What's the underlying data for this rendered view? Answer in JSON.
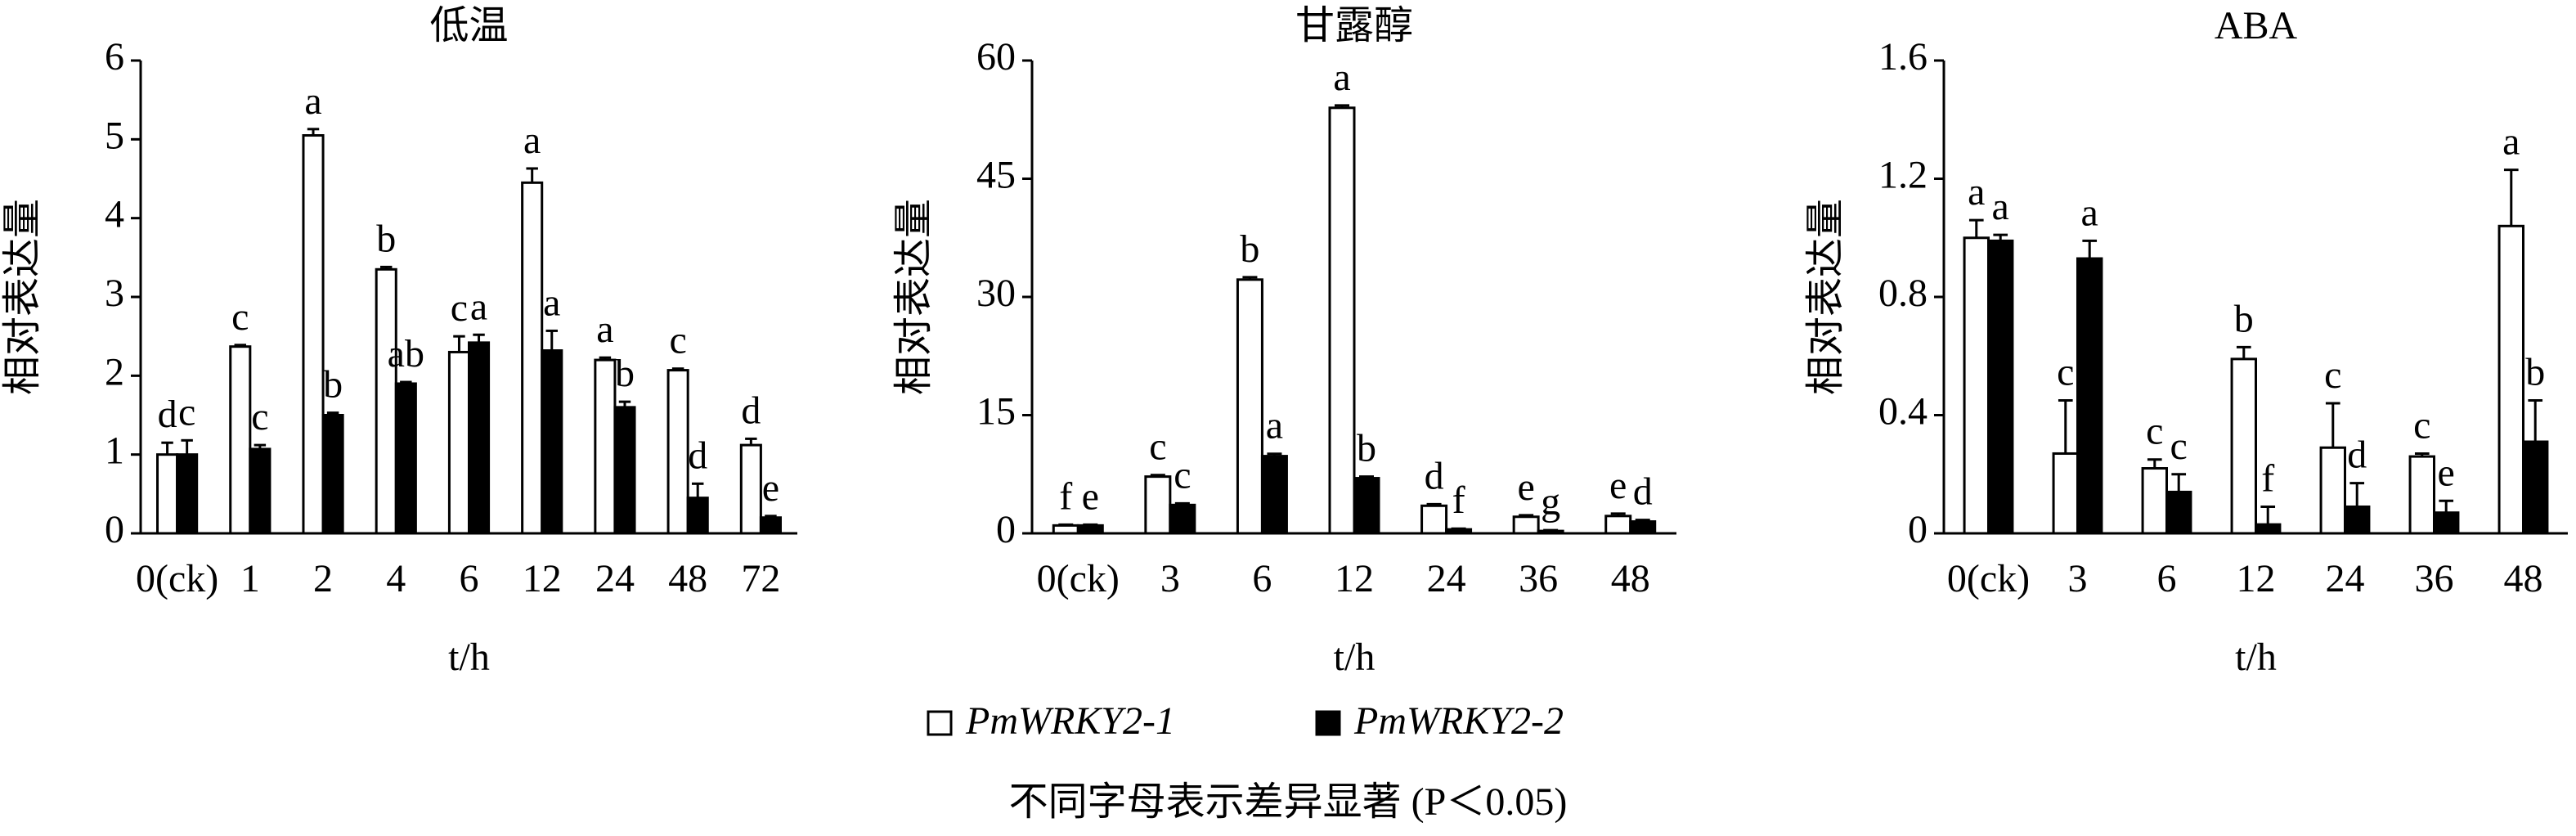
{
  "chart_data": [
    {
      "type": "bar",
      "title": "低温",
      "xlabel": "t/h",
      "ylabel": "相对表达量",
      "categories": [
        "0(ck)",
        "1",
        "2",
        "4",
        "6",
        "12",
        "24",
        "48",
        "72"
      ],
      "ylim": [
        0,
        6
      ],
      "yticks": [
        0,
        1,
        2,
        3,
        4,
        5,
        6
      ],
      "series": [
        {
          "name": "PmWRKY2-1",
          "color": "#ffffff",
          "values": [
            1.0,
            2.37,
            5.05,
            3.35,
            2.3,
            4.45,
            2.2,
            2.07,
            1.12
          ],
          "errors": [
            0.15,
            0.02,
            0.08,
            0.03,
            0.2,
            0.18,
            0.03,
            0.02,
            0.08
          ],
          "letters": [
            "d",
            "c",
            "a",
            "b",
            "c",
            "a",
            "a",
            "c",
            "d"
          ]
        },
        {
          "name": "PmWRKY2-2",
          "color": "#000000",
          "values": [
            1.0,
            1.07,
            1.5,
            1.9,
            2.42,
            2.32,
            1.6,
            0.45,
            0.2
          ],
          "errors": [
            0.18,
            0.05,
            0.03,
            0.02,
            0.1,
            0.25,
            0.07,
            0.18,
            0.02
          ],
          "letters": [
            "c",
            "c",
            "b",
            "ab",
            "a",
            "a",
            "b",
            "d",
            "e"
          ]
        }
      ]
    },
    {
      "type": "bar",
      "title": "甘露醇",
      "xlabel": "t/h",
      "ylabel": "相对表达量",
      "categories": [
        "0(ck)",
        "3",
        "6",
        "12",
        "24",
        "36",
        "48"
      ],
      "ylim": [
        0,
        60
      ],
      "yticks": [
        0,
        15,
        30,
        45,
        60
      ],
      "series": [
        {
          "name": "PmWRKY2-1",
          "color": "#ffffff",
          "values": [
            1,
            7.2,
            32.2,
            54,
            3.5,
            2.1,
            2.2
          ],
          "errors": [
            0.1,
            0.2,
            0.3,
            0.3,
            0.2,
            0.2,
            0.3
          ],
          "letters": [
            "f",
            "c",
            "b",
            "a",
            "d",
            "e",
            "e"
          ]
        },
        {
          "name": "PmWRKY2-2",
          "color": "#000000",
          "values": [
            1,
            3.6,
            9.8,
            7,
            0.5,
            0.3,
            1.5
          ],
          "errors": [
            0.1,
            0.2,
            0.3,
            0.2,
            0.1,
            0.1,
            0.2
          ],
          "letters": [
            "e",
            "c",
            "a",
            "b",
            "f",
            "g",
            "d"
          ]
        }
      ]
    },
    {
      "type": "bar",
      "title": "ABA",
      "xlabel": "t/h",
      "ylabel": "相对表达量",
      "categories": [
        "0(ck)",
        "3",
        "6",
        "12",
        "24",
        "36",
        "48"
      ],
      "ylim": [
        0,
        1.6
      ],
      "yticks": [
        0,
        0.4,
        0.8,
        1.2,
        1.6
      ],
      "series": [
        {
          "name": "PmWRKY2-1",
          "color": "#ffffff",
          "values": [
            1.0,
            0.27,
            0.22,
            0.59,
            0.29,
            0.26,
            1.04
          ],
          "errors": [
            0.06,
            0.18,
            0.03,
            0.04,
            0.15,
            0.01,
            0.19
          ],
          "letters": [
            "a",
            "c",
            "c",
            "b",
            "c",
            "c",
            "a"
          ]
        },
        {
          "name": "PmWRKY2-2",
          "color": "#000000",
          "values": [
            0.99,
            0.93,
            0.14,
            0.03,
            0.09,
            0.07,
            0.31
          ],
          "errors": [
            0.02,
            0.06,
            0.06,
            0.06,
            0.08,
            0.04,
            0.14
          ],
          "letters": [
            "a",
            "a",
            "c",
            "f",
            "d",
            "e",
            "b"
          ]
        }
      ]
    }
  ],
  "note": "不同字母表示差异显著 (P＜0.05)"
}
